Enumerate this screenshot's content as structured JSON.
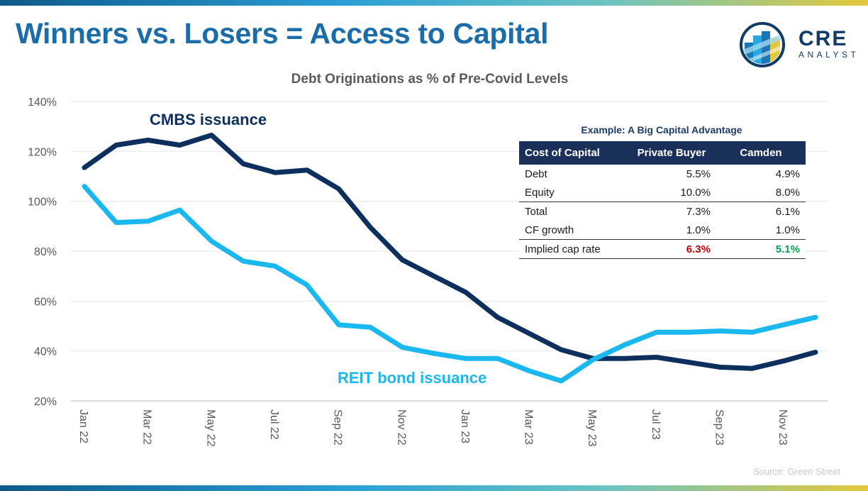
{
  "header": {
    "title": "Winners vs. Losers = Access to Capital",
    "logo_word": "CRE",
    "logo_sub": "ANALYST"
  },
  "chart_data": {
    "type": "line",
    "title": "Debt Originations as % of Pre-Covid Levels",
    "x": [
      "Jan 22",
      "Feb 22",
      "Mar 22",
      "Apr 22",
      "May 22",
      "Jun 22",
      "Jul 22",
      "Aug 22",
      "Sep 22",
      "Oct 22",
      "Nov 22",
      "Dec 22",
      "Jan 23",
      "Feb 23",
      "Mar 23",
      "Apr 23",
      "May 23",
      "Jun 23",
      "Jul 23",
      "Aug 23",
      "Sep 23",
      "Oct 23",
      "Nov 23",
      "Dec 23"
    ],
    "tick_labels": [
      "Jan 22",
      "Mar 22",
      "May 22",
      "Jul 22",
      "Sep 22",
      "Nov 22",
      "Jan 23",
      "Mar 23",
      "May 23",
      "Jul 23",
      "Sep 23",
      "Nov 23"
    ],
    "y_ticks": [
      "20%",
      "40%",
      "60%",
      "80%",
      "100%",
      "120%",
      "140%"
    ],
    "ylim": [
      20,
      140
    ],
    "grid": "horizontal",
    "series": [
      {
        "name": "CMBS issuance",
        "color": "#0d2f5e",
        "values": [
          113.5,
          122.5,
          124.5,
          122.5,
          126.5,
          115,
          111.5,
          112.5,
          105,
          89.5,
          76.5,
          70,
          63.5,
          53.5,
          47,
          40.5,
          37,
          37,
          37.5,
          35.5,
          33.5,
          33,
          36,
          39.5
        ]
      },
      {
        "name": "REIT bond issuance",
        "color": "#1ab8ee",
        "values": [
          106,
          91.5,
          92,
          96.5,
          84,
          76,
          74,
          66.5,
          50.5,
          49.5,
          41.5,
          39,
          37,
          37,
          32,
          28,
          36.5,
          42.5,
          47.5,
          47.5,
          48,
          47.5,
          50.5,
          53.5
        ]
      }
    ]
  },
  "table": {
    "title": "Example: A Big Capital Advantage",
    "headers": [
      "Cost of Capital",
      "Private Buyer",
      "Camden"
    ],
    "rows": [
      {
        "label": "Debt",
        "private": "5.5%",
        "camden": "4.9%"
      },
      {
        "label": "Equity",
        "private": "10.0%",
        "camden": "8.0%"
      },
      {
        "label": "Total",
        "private": "7.3%",
        "camden": "6.1%"
      },
      {
        "label": "CF growth",
        "private": "1.0%",
        "camden": "1.0%"
      },
      {
        "label": "Implied cap rate",
        "private": "6.3%",
        "camden": "5.1%"
      }
    ],
    "colors": {
      "private_highlight": "#c00000",
      "camden_highlight": "#00a64f"
    }
  },
  "source": "Source: Green Street"
}
